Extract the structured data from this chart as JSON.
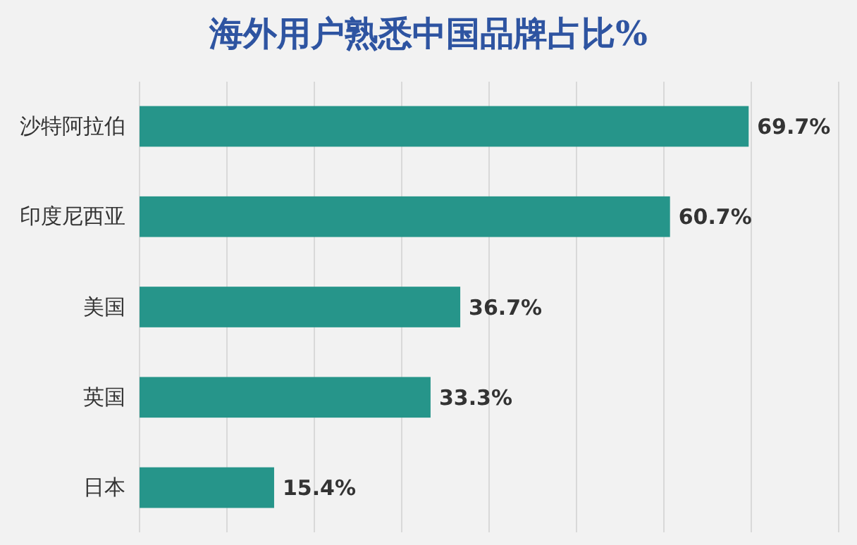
{
  "chart_data": {
    "type": "bar",
    "orientation": "horizontal",
    "title": "海外用户熟悉中国品牌占比%",
    "categories": [
      "沙特阿拉伯",
      "印度尼西亚",
      "美国",
      "英国",
      "日本"
    ],
    "values": [
      69.7,
      60.7,
      36.7,
      33.3,
      15.4
    ],
    "value_labels": [
      "69.7%",
      "60.7%",
      "36.7%",
      "33.3%",
      "15.4%"
    ],
    "color": "#26958a",
    "xlim": [
      0,
      80
    ],
    "xticks": [
      {
        "value": 0,
        "label": null
      },
      {
        "value": 10,
        "label": null
      },
      {
        "value": 20,
        "label": null
      },
      {
        "value": 30,
        "label": null
      },
      {
        "value": 40,
        "label": null
      },
      {
        "value": 50,
        "label": null
      },
      {
        "value": 60,
        "label": null
      },
      {
        "value": 70,
        "label": null
      },
      {
        "value": 80,
        "label": null
      }
    ],
    "grid": "x",
    "tick_labels": "y"
  }
}
